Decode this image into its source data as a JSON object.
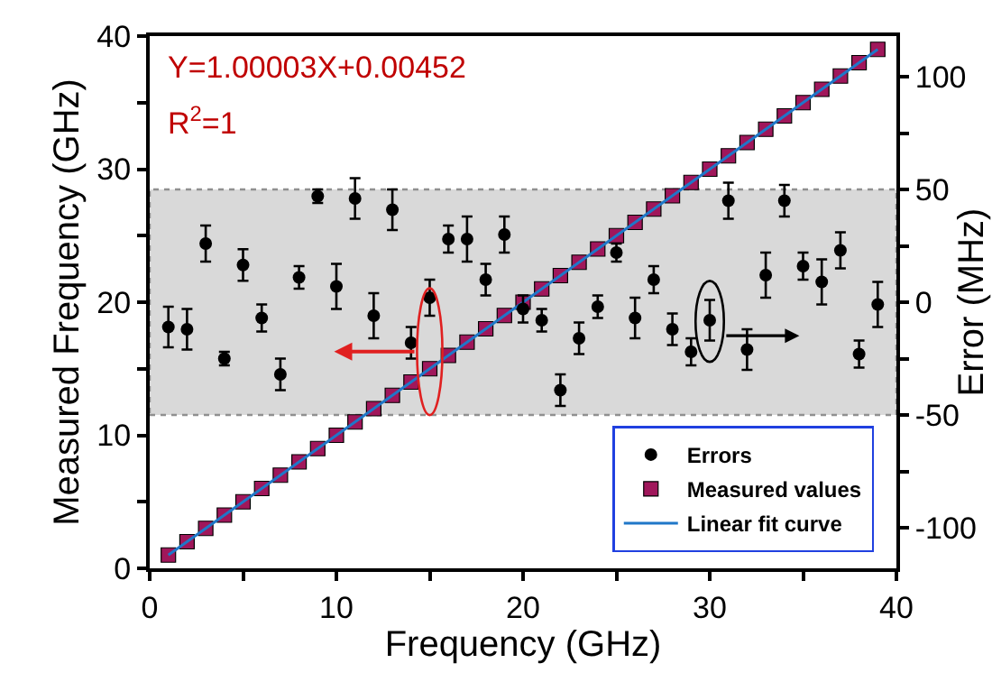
{
  "chart_data": {
    "type": "scatter",
    "xlabel": "Frequency (GHz)",
    "ylabel": "Measured Frequency (GHz)",
    "y2label": "Error (MHz)",
    "annotations": [
      "Y=1.00003X+0.00452",
      "R$^{2}$=1"
    ],
    "x": [
      1,
      2,
      3,
      4,
      5,
      6,
      7,
      8,
      9,
      10,
      11,
      12,
      13,
      14,
      15,
      16,
      17,
      18,
      19,
      20,
      21,
      22,
      23,
      24,
      25,
      26,
      27,
      28,
      29,
      30,
      31,
      32,
      33,
      34,
      35,
      36,
      37,
      38,
      39
    ],
    "series": [
      {
        "name": "Errors",
        "axis": "y2",
        "color": "#000000",
        "marker": "circle",
        "values": [
          -11,
          -12,
          26,
          -25,
          16.5,
          -7,
          -32,
          11,
          47,
          7,
          46,
          -6,
          41,
          -18,
          2,
          28,
          28,
          10,
          30,
          -3,
          -8,
          -39,
          -16,
          -2,
          22,
          -7,
          10,
          -12,
          -22,
          -8,
          45,
          -21,
          12,
          45,
          16,
          9,
          23,
          -23,
          -1
        ],
        "errors": [
          9,
          9,
          8,
          3,
          7,
          6,
          7,
          5,
          3,
          10,
          9,
          10,
          9,
          7,
          8,
          6,
          10,
          7,
          8,
          6,
          5,
          7,
          7,
          5,
          4,
          9,
          6,
          7,
          6,
          9,
          8,
          9,
          10,
          7,
          6,
          10,
          8,
          6,
          10
        ]
      },
      {
        "name": "Measured values",
        "color": "#a0175b",
        "marker": "square",
        "values": [
          1,
          2,
          3,
          4,
          5,
          6,
          7,
          8,
          9,
          10,
          11,
          12,
          13,
          14,
          15,
          16,
          17,
          18,
          19,
          20,
          21,
          22,
          23,
          24,
          25,
          26,
          27,
          28,
          29,
          30,
          31,
          32,
          33,
          34,
          35,
          36,
          37,
          38,
          39
        ]
      },
      {
        "name": "Linear fit curve",
        "type": "line",
        "color": "#1f77c8",
        "marker": "none",
        "line_style": "solid",
        "x": [
          1,
          39
        ],
        "values": [
          1,
          39
        ]
      }
    ],
    "xlim": [
      0,
      40
    ],
    "xticks": [
      0,
      {
        "value": 5,
        "label": null
      },
      10,
      {
        "value": 15,
        "label": null
      },
      20,
      {
        "value": 25,
        "label": null
      },
      30,
      {
        "value": 35,
        "label": null
      },
      40
    ],
    "ylim": [
      0,
      40
    ],
    "yticks": [
      0,
      {
        "value": 5,
        "label": null
      },
      10,
      {
        "value": 15,
        "label": null
      },
      20,
      {
        "value": 25,
        "label": null
      },
      30,
      {
        "value": 35,
        "label": null
      },
      40
    ],
    "y2lim": [
      -118,
      118
    ],
    "y2ticks": [
      -100,
      {
        "value": -75,
        "label": null
      },
      -50,
      {
        "value": -25,
        "label": null
      },
      0,
      {
        "value": 25,
        "label": null
      },
      50,
      {
        "value": 75,
        "label": null
      },
      100
    ],
    "bands": [
      {
        "axis": "y2",
        "from": -50,
        "to": 50,
        "color": "#d9d9d9"
      }
    ],
    "grid": false,
    "legend": "bottom right"
  }
}
